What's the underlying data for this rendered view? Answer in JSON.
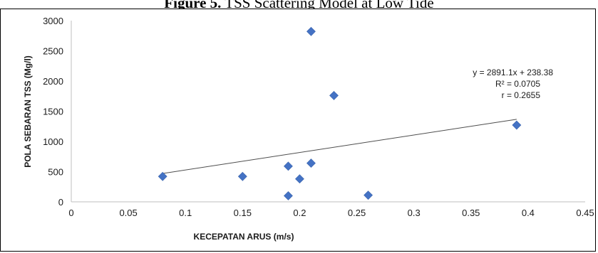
{
  "figure": {
    "caption_label": "Figure 5.",
    "caption_text": " TSS Scattering Model at Low Tide"
  },
  "chart_data": {
    "type": "scatter",
    "title": "",
    "xlabel": "KECEPATAN ARUS (m/s)",
    "ylabel": "POLA SEBARAN TSS (Mg/l)",
    "xlim": [
      0,
      0.45
    ],
    "ylim": [
      0,
      3000
    ],
    "x_ticks": [
      "0",
      "0.05",
      "0.1",
      "0.15",
      "0.2",
      "0.25",
      "0.3",
      "0.35",
      "0.4",
      "0.45"
    ],
    "y_ticks": [
      "0",
      "500",
      "1000",
      "1500",
      "2000",
      "2500",
      "3000"
    ],
    "grid": false,
    "marker": "diamond",
    "marker_color": "#4472C4",
    "points": [
      {
        "x": 0.08,
        "y": 420
      },
      {
        "x": 0.15,
        "y": 420
      },
      {
        "x": 0.19,
        "y": 590
      },
      {
        "x": 0.19,
        "y": 100
      },
      {
        "x": 0.2,
        "y": 380
      },
      {
        "x": 0.21,
        "y": 2820
      },
      {
        "x": 0.21,
        "y": 640
      },
      {
        "x": 0.23,
        "y": 1760
      },
      {
        "x": 0.26,
        "y": 110
      },
      {
        "x": 0.39,
        "y": 1270
      }
    ],
    "trendline": {
      "type": "linear",
      "slope": 2891.1,
      "intercept": 238.38,
      "x_range": [
        0.08,
        0.39
      ],
      "color": "#4d4d4d"
    },
    "annotations": [
      "y = 2891.1x + 238.38",
      "R² = 0.0705",
      "r = 0.2655"
    ]
  }
}
